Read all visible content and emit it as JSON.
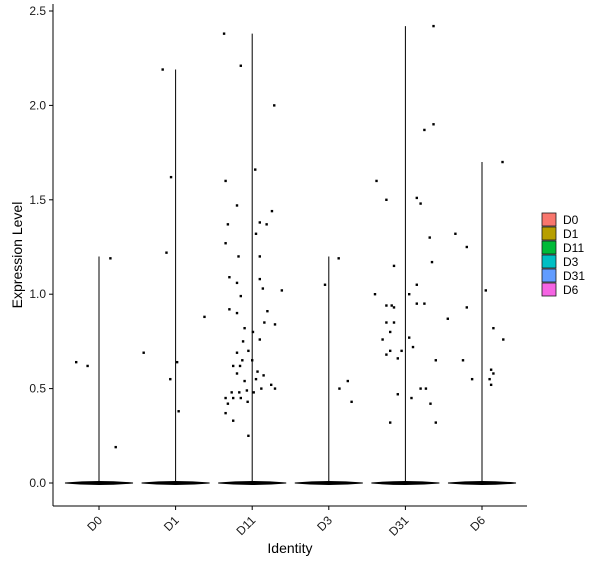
{
  "chart_data": {
    "type": "scatter",
    "subtype": "violin-jitter",
    "xlabel": "Identity",
    "ylabel": "Expression Level",
    "ylim": [
      -0.12,
      2.55
    ],
    "yticks": [
      "0.0",
      "0.5",
      "1.0",
      "1.5",
      "2.0",
      "2.5"
    ],
    "ytick_values": [
      0,
      0.5,
      1,
      1.5,
      2,
      2.5
    ],
    "categories": [
      "D0",
      "D1",
      "D11",
      "D3",
      "D31",
      "D6"
    ],
    "legend_position": "right",
    "legend": [
      {
        "label": "D0",
        "color": "#F8766D"
      },
      {
        "label": "D1",
        "color": "#B79F00"
      },
      {
        "label": "D11",
        "color": "#00BA38"
      },
      {
        "label": "D3",
        "color": "#00BFC4"
      },
      {
        "label": "D31",
        "color": "#619CFF"
      },
      {
        "label": "D6",
        "color": "#F564E3"
      }
    ],
    "groups": [
      {
        "category": "D0",
        "max": 1.2,
        "points": [
          [
            -0.3,
            0.64
          ],
          [
            -0.15,
            0.62
          ],
          [
            0.15,
            1.19
          ],
          [
            0.22,
            0.19
          ]
        ]
      },
      {
        "category": "D1",
        "max": 2.19,
        "points": [
          [
            -0.42,
            0.69
          ],
          [
            -0.17,
            2.19
          ],
          [
            -0.12,
            1.22
          ],
          [
            -0.07,
            0.55
          ],
          [
            -0.06,
            1.62
          ],
          [
            0.02,
            0.64
          ],
          [
            0.04,
            0.38
          ],
          [
            0.38,
            0.88
          ]
        ]
      },
      {
        "category": "D11",
        "max": 2.38,
        "points": [
          [
            -0.37,
            2.38
          ],
          [
            -0.15,
            2.21
          ],
          [
            0.29,
            2.0
          ],
          [
            0.04,
            1.66
          ],
          [
            -0.35,
            1.6
          ],
          [
            -0.2,
            1.47
          ],
          [
            0.26,
            1.44
          ],
          [
            -0.32,
            1.37
          ],
          [
            0.19,
            1.37
          ],
          [
            0.1,
            1.38
          ],
          [
            0.05,
            1.32
          ],
          [
            -0.35,
            1.27
          ],
          [
            -0.18,
            1.2
          ],
          [
            0.1,
            1.2
          ],
          [
            -0.3,
            1.09
          ],
          [
            -0.2,
            1.06
          ],
          [
            0.1,
            1.08
          ],
          [
            0.14,
            1.03
          ],
          [
            0.39,
            1.02
          ],
          [
            -0.15,
            0.99
          ],
          [
            -0.3,
            0.92
          ],
          [
            -0.2,
            0.9
          ],
          [
            0.2,
            0.91
          ],
          [
            -0.1,
            0.82
          ],
          [
            0.01,
            0.8
          ],
          [
            0.16,
            0.85
          ],
          [
            0.3,
            0.84
          ],
          [
            -0.12,
            0.75
          ],
          [
            -0.05,
            0.7
          ],
          [
            0.1,
            0.76
          ],
          [
            -0.2,
            0.69
          ],
          [
            -0.13,
            0.65
          ],
          [
            -0.25,
            0.62
          ],
          [
            -0.16,
            0.62
          ],
          [
            0.0,
            0.65
          ],
          [
            0.07,
            0.59
          ],
          [
            -0.2,
            0.58
          ],
          [
            0.15,
            0.57
          ],
          [
            -0.1,
            0.54
          ],
          [
            -0.27,
            0.48
          ],
          [
            -0.17,
            0.48
          ],
          [
            -0.07,
            0.49
          ],
          [
            0.05,
            0.55
          ],
          [
            0.25,
            0.52
          ],
          [
            -0.35,
            0.45
          ],
          [
            -0.25,
            0.45
          ],
          [
            -0.15,
            0.45
          ],
          [
            -0.06,
            0.43
          ],
          [
            0.02,
            0.48
          ],
          [
            0.12,
            0.5
          ],
          [
            -0.32,
            0.42
          ],
          [
            0.3,
            0.5
          ],
          [
            -0.35,
            0.37
          ],
          [
            -0.25,
            0.33
          ],
          [
            -0.05,
            0.25
          ]
        ]
      },
      {
        "category": "D3",
        "max": 1.2,
        "points": [
          [
            -0.05,
            1.05
          ],
          [
            0.13,
            1.19
          ],
          [
            0.14,
            0.5
          ],
          [
            0.25,
            0.54
          ],
          [
            0.3,
            0.43
          ]
        ]
      },
      {
        "category": "D31",
        "max": 2.42,
        "points": [
          [
            0.37,
            2.42
          ],
          [
            0.37,
            1.9
          ],
          [
            0.25,
            1.87
          ],
          [
            -0.38,
            1.6
          ],
          [
            0.15,
            1.51
          ],
          [
            -0.25,
            1.5
          ],
          [
            0.2,
            1.48
          ],
          [
            0.32,
            1.3
          ],
          [
            0.35,
            1.17
          ],
          [
            -0.15,
            1.15
          ],
          [
            0.15,
            1.05
          ],
          [
            -0.4,
            1.0
          ],
          [
            0.05,
            1.0
          ],
          [
            0.25,
            0.95
          ],
          [
            -0.25,
            0.94
          ],
          [
            -0.18,
            0.94
          ],
          [
            -0.15,
            0.93
          ],
          [
            0.15,
            0.95
          ],
          [
            -0.15,
            0.85
          ],
          [
            -0.25,
            0.85
          ],
          [
            -0.2,
            0.8
          ],
          [
            -0.3,
            0.76
          ],
          [
            0.05,
            0.77
          ],
          [
            -0.2,
            0.7
          ],
          [
            -0.05,
            0.7
          ],
          [
            0.1,
            0.72
          ],
          [
            -0.25,
            0.68
          ],
          [
            -0.1,
            0.66
          ],
          [
            0.4,
            0.65
          ],
          [
            0.2,
            0.5
          ],
          [
            -0.1,
            0.47
          ],
          [
            0.27,
            0.5
          ],
          [
            0.08,
            0.45
          ],
          [
            0.33,
            0.42
          ],
          [
            0.4,
            0.32
          ],
          [
            -0.2,
            0.32
          ]
        ]
      },
      {
        "category": "D6",
        "max": 1.7,
        "points": [
          [
            0.27,
            1.7
          ],
          [
            -0.35,
            1.32
          ],
          [
            -0.2,
            1.25
          ],
          [
            0.05,
            1.02
          ],
          [
            -0.2,
            0.93
          ],
          [
            -0.45,
            0.87
          ],
          [
            0.15,
            0.82
          ],
          [
            0.28,
            0.76
          ],
          [
            -0.25,
            0.65
          ],
          [
            0.12,
            0.6
          ],
          [
            0.15,
            0.58
          ],
          [
            0.1,
            0.55
          ],
          [
            -0.13,
            0.55
          ],
          [
            0.12,
            0.52
          ]
        ]
      }
    ]
  }
}
